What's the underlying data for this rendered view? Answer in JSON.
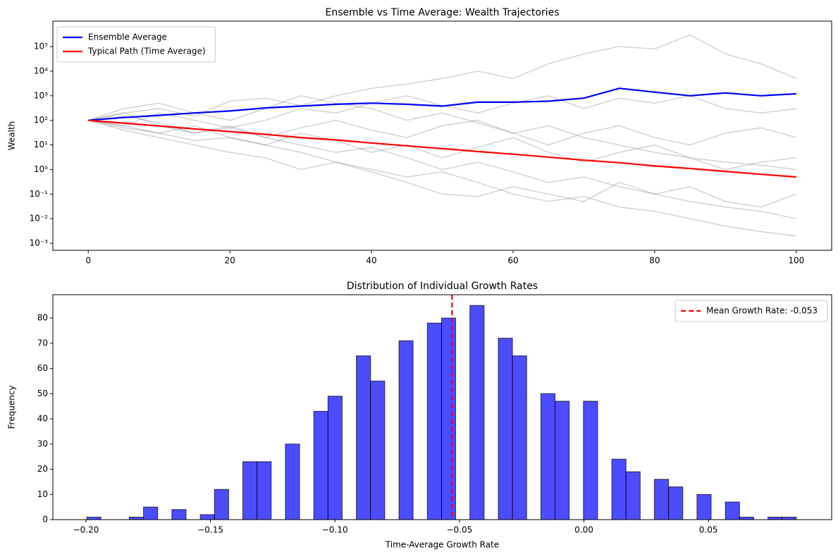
{
  "chart_data": [
    {
      "type": "line",
      "title": "Ensemble vs Time Average: Wealth Trajectories",
      "ylabel": "Wealth",
      "yscale": "log",
      "xlim": [
        -5,
        105
      ],
      "ylim": [
        0.00052,
        1080000
      ],
      "xticks": [
        0,
        20,
        40,
        60,
        80,
        100
      ],
      "yticks": [
        {
          "value": 0.001,
          "label": "10⁻³"
        },
        {
          "value": 0.01,
          "label": "10⁻²"
        },
        {
          "value": 0.1,
          "label": "10⁻¹"
        },
        {
          "value": 1,
          "label": "10⁰"
        },
        {
          "value": 10,
          "label": "10¹"
        },
        {
          "value": 100,
          "label": "10²"
        },
        {
          "value": 1000,
          "label": "10³"
        },
        {
          "value": 10000,
          "label": "10⁴"
        },
        {
          "value": 100000,
          "label": "10⁵"
        }
      ],
      "legend": "upper left",
      "x": [
        0,
        5,
        10,
        15,
        20,
        25,
        30,
        35,
        40,
        45,
        50,
        55,
        60,
        65,
        70,
        75,
        80,
        85,
        90,
        95,
        100
      ],
      "path_color": "gray",
      "path_alpha": 0.35,
      "paths": [
        {
          "values": [
            100,
            200,
            300,
            150,
            600,
            800,
            400,
            1000,
            2000,
            3000,
            5000,
            10000,
            5000,
            20000,
            50000,
            100000,
            80000,
            300000,
            50000,
            20000,
            5000
          ]
        },
        {
          "values": [
            100,
            60,
            200,
            100,
            50,
            100,
            300,
            200,
            500,
            1000,
            400,
            200,
            500,
            1000,
            300,
            800,
            500,
            1000,
            300,
            200,
            300
          ]
        },
        {
          "values": [
            100,
            200,
            60,
            30,
            60,
            20,
            50,
            100,
            40,
            20,
            60,
            100,
            30,
            10,
            30,
            60,
            20,
            10,
            30,
            50,
            20
          ]
        },
        {
          "values": [
            100,
            50,
            30,
            60,
            20,
            10,
            30,
            15,
            5,
            10,
            3,
            8,
            20,
            5,
            2,
            5,
            10,
            3,
            1,
            2,
            3
          ]
        },
        {
          "values": [
            100,
            40,
            20,
            10,
            5,
            3,
            1,
            2,
            0.8,
            0.3,
            0.1,
            0.08,
            0.2,
            0.1,
            0.05,
            0.3,
            0.1,
            0.2,
            0.05,
            0.03,
            0.1
          ]
        },
        {
          "values": [
            100,
            150,
            80,
            30,
            50,
            20,
            10,
            5,
            8,
            3,
            1,
            2,
            0.8,
            0.3,
            0.5,
            0.2,
            0.1,
            0.05,
            0.03,
            0.02,
            0.01
          ]
        },
        {
          "values": [
            100,
            60,
            30,
            15,
            20,
            10,
            5,
            2,
            1,
            0.5,
            0.8,
            0.3,
            0.1,
            0.05,
            0.08,
            0.03,
            0.02,
            0.01,
            0.005,
            0.003,
            0.002
          ]
        },
        {
          "values": [
            100,
            300,
            500,
            200,
            100,
            300,
            1000,
            500,
            300,
            100,
            200,
            80,
            30,
            60,
            20,
            10,
            5,
            3,
            2,
            1.5,
            1
          ]
        }
      ],
      "series": [
        {
          "name": "Ensemble Average",
          "color": "#0000ff",
          "values": [
            100,
            130,
            160,
            200,
            240,
            320,
            380,
            450,
            500,
            450,
            380,
            550,
            550,
            600,
            800,
            2000,
            1400,
            1000,
            1300,
            1000,
            1200
          ]
        },
        {
          "name": "Typical Path (Time Average)",
          "color": "#ff0000",
          "values": [
            100,
            77,
            59,
            45,
            35,
            27,
            20,
            16,
            12,
            9.2,
            7.1,
            5.4,
            4.2,
            3.2,
            2.4,
            1.9,
            1.4,
            1.1,
            0.84,
            0.64,
            0.5
          ]
        }
      ]
    },
    {
      "type": "histogram",
      "title": "Distribution of Individual Growth Rates",
      "xlabel": "Time-Average Growth Rate",
      "ylabel": "Frequency",
      "xlim": [
        -0.2133,
        0.0995
      ],
      "ylim": [
        0,
        89.25
      ],
      "xticks": [
        {
          "value": -0.2,
          "label": "−0.20"
        },
        {
          "value": -0.15,
          "label": "−0.15"
        },
        {
          "value": -0.1,
          "label": "−0.10"
        },
        {
          "value": -0.05,
          "label": "−0.05"
        },
        {
          "value": 0,
          "label": "0.00"
        },
        {
          "value": 0.05,
          "label": "0.05"
        }
      ],
      "yticks": [
        0,
        10,
        20,
        30,
        40,
        50,
        60,
        70,
        80
      ],
      "color": "#0000ff",
      "alpha": 0.7,
      "legend": "upper right",
      "bins": [
        -0.1997,
        -0.194,
        -0.1883,
        -0.1826,
        -0.1769,
        -0.1712,
        -0.1655,
        -0.1598,
        -0.1541,
        -0.1484,
        -0.1427,
        -0.137,
        -0.1313,
        -0.1256,
        -0.1199,
        -0.1142,
        -0.1085,
        -0.1028,
        -0.0971,
        -0.0914,
        -0.0857,
        -0.08,
        -0.0743,
        -0.0686,
        -0.0629,
        -0.0572,
        -0.0515,
        -0.0458,
        -0.0401,
        -0.0344,
        -0.0287,
        -0.023,
        -0.0173,
        -0.0116,
        -0.0059,
        -0.0002,
        0.0055,
        0.0112,
        0.0169,
        0.0226,
        0.0283,
        0.034,
        0.0397,
        0.0454,
        0.0511,
        0.0568,
        0.0625,
        0.0682,
        0.0739,
        0.0796,
        0.0853
      ],
      "values": [
        1,
        0,
        0,
        1,
        5,
        0,
        4,
        0,
        2,
        12,
        0,
        23,
        23,
        0,
        30,
        0,
        43,
        49,
        0,
        65,
        55,
        0,
        71,
        0,
        78,
        80,
        0,
        85,
        0,
        72,
        65,
        0,
        50,
        47,
        0,
        47,
        0,
        24,
        19,
        0,
        16,
        13,
        0,
        10,
        0,
        7,
        1,
        0,
        1,
        1
      ],
      "mean_line": {
        "value": -0.053,
        "label": "Mean Growth Rate: -0.053",
        "color": "#ff0000"
      }
    }
  ]
}
